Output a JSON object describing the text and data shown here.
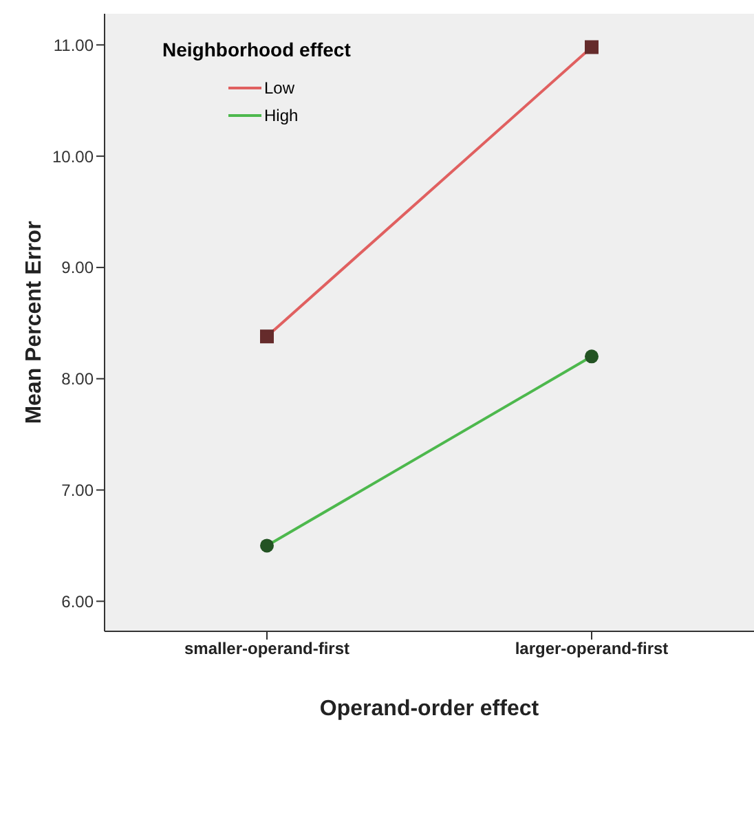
{
  "chart_data": {
    "type": "line",
    "xlabel": "Operand-order effect",
    "ylabel": "Mean Percent Error",
    "legend_title": "Neighborhood effect",
    "categories": [
      "smaller-operand-first",
      "larger-operand-first"
    ],
    "series": [
      {
        "name": "Low",
        "color": "#e06060",
        "marker": "square",
        "values": [
          8.38,
          10.98
        ]
      },
      {
        "name": "High",
        "color": "#4db84d",
        "marker": "circle",
        "values": [
          6.5,
          8.2
        ]
      }
    ],
    "ylim": [
      5.73,
      11.28
    ],
    "yticks": [
      {
        "value": 6,
        "label": "6.00"
      },
      {
        "value": 7,
        "label": "7.00"
      },
      {
        "value": 8,
        "label": "8.00"
      },
      {
        "value": 9,
        "label": "9.00"
      },
      {
        "value": 10,
        "label": "10.00"
      },
      {
        "value": 11,
        "label": "11.00"
      }
    ],
    "legend": "top left",
    "grid": false
  }
}
